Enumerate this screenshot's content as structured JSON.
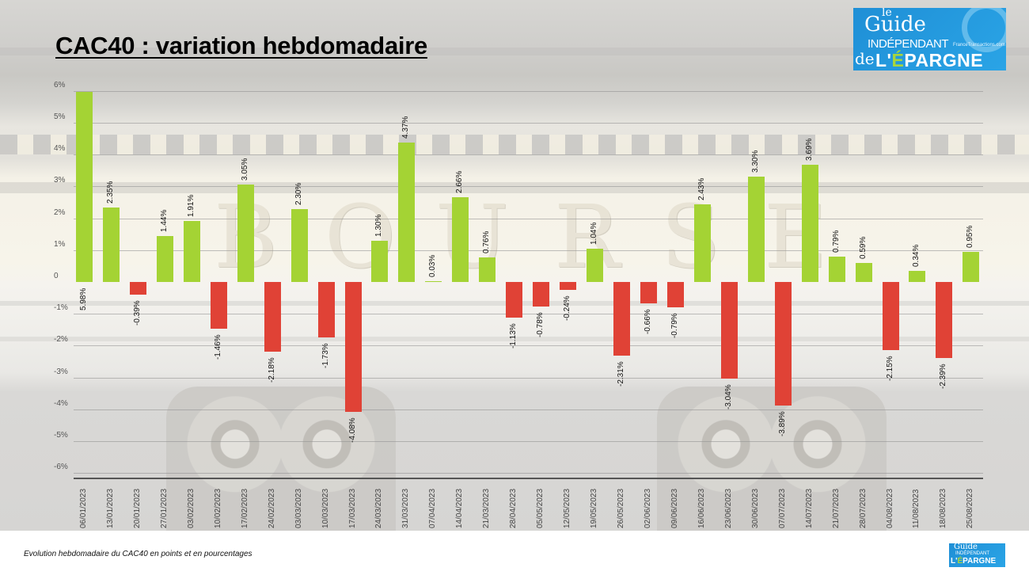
{
  "header": {
    "title": "CAC40 : variation hebdomadaire"
  },
  "logo": {
    "le": "le",
    "guide": "Guide",
    "independant": "INDÉPENDANT",
    "francetransactions": "FranceTransactions.com",
    "de": "de",
    "epargne_prefix": "L'",
    "epargne_e": "É",
    "epargne_rest": "PARGNE",
    "bg_color": "#1f8fd6",
    "accent_color": "#a8d63b"
  },
  "footer": {
    "caption": "Evolution hebdomadaire du CAC40 en points et en pourcentages"
  },
  "colors": {
    "positive": "#a4d334",
    "negative": "#e04236",
    "axis": "#555555",
    "grid": "#8e8e8e"
  },
  "chart_data": {
    "type": "bar",
    "title": "CAC40 : variation hebdomadaire",
    "subtitle": "Evolution hebdomadaire du CAC40 en points et en pourcentages",
    "xlabel": "",
    "ylabel": "",
    "ylim": [
      -6,
      6
    ],
    "yticks": [
      "6%",
      "5%",
      "4%",
      "3%",
      "2%",
      "1%",
      "0",
      "-1%",
      "-2%",
      "-3%",
      "-4%",
      "-5%",
      "-6%"
    ],
    "ytick_values": [
      6,
      5,
      4,
      3,
      2,
      1,
      0,
      -1,
      -2,
      -3,
      -4,
      -5,
      -6
    ],
    "grid": true,
    "legend": null,
    "categories": [
      "06/01/2023",
      "13/01/2023",
      "20/01/2023",
      "27/01/2023",
      "03/02/2023",
      "10/02/2023",
      "17/02/2023",
      "24/02/2023",
      "03/03/2023",
      "10/03/2023",
      "17/03/2023",
      "24/03/2023",
      "31/03/2023",
      "07/04/2023",
      "14/04/2023",
      "21/03/2023",
      "28/04/2023",
      "05/05/2023",
      "12/05/2023",
      "19/05/2023",
      "26/05/2023",
      "02/06/2023",
      "09/06/2023",
      "16/06/2023",
      "23/06/2023",
      "30/06/2023",
      "07/07/2023",
      "14/07/2023",
      "21/07/2023",
      "28/07/2023",
      "04/08/2023",
      "11/08/2023",
      "18/08/2023",
      "25/08/2023"
    ],
    "values": [
      5.98,
      2.35,
      -0.39,
      1.44,
      1.91,
      -1.46,
      3.05,
      -2.18,
      2.3,
      -1.73,
      -4.08,
      1.3,
      4.37,
      0.03,
      2.66,
      0.76,
      -1.13,
      -0.78,
      -0.24,
      1.04,
      -2.31,
      -0.66,
      -0.79,
      2.43,
      -3.04,
      3.3,
      -3.89,
      3.69,
      0.79,
      0.59,
      -2.15,
      0.34,
      -2.39,
      0.95
    ],
    "labels": [
      "5.98%",
      "2.35%",
      "-0.39%",
      "1.44%",
      "1.91%",
      "-1.46%",
      "3.05%",
      "-2.18%",
      "2.30%",
      "-1.73%",
      "-4.08%",
      "1.30%",
      "4.37%",
      "0.03%",
      "2.66%",
      "0.76%",
      "-1.13%",
      "-0.78%",
      "-0.24%",
      "1.04%",
      "-2.31%",
      "-0.66%",
      "-0.79%",
      "2.43%",
      "-3.04%",
      "3.30%",
      "-3.89%",
      "3.69%",
      "0.79%",
      "0.59%",
      "-2.15%",
      "0.34%",
      "-2.39%",
      "0.95%"
    ]
  }
}
